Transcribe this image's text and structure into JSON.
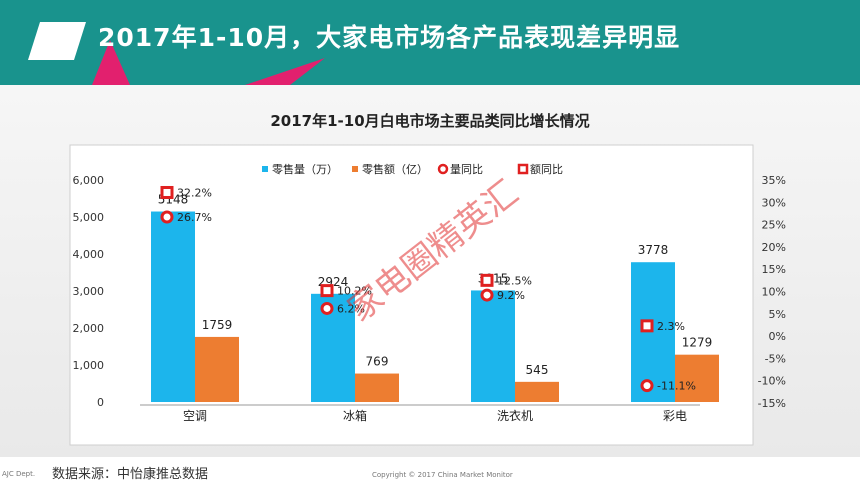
{
  "header": {
    "title": "2017年1-10月，大家电市场各产品表现差异明显"
  },
  "chart_data": {
    "type": "bar",
    "title": "2017年1-10月白电市场主要品类同比增长情况",
    "categories": [
      "空调",
      "冰箱",
      "洗衣机",
      "彩电"
    ],
    "series": [
      {
        "name": "零售量（万）",
        "kind": "bar",
        "axis": "left",
        "color": "#1cb5ec",
        "values": [
          5148,
          2924,
          3015,
          3778
        ]
      },
      {
        "name": "零售额（亿）",
        "kind": "bar",
        "axis": "left",
        "color": "#ed7d31",
        "values": [
          1759,
          769,
          545,
          1279
        ]
      },
      {
        "name": "量同比",
        "kind": "marker-circle",
        "axis": "right",
        "color": "#e02020",
        "values": [
          26.7,
          6.2,
          9.2,
          -11.1
        ],
        "labels": [
          "26.7%",
          "6.2%",
          "9.2%",
          "-11.1%"
        ]
      },
      {
        "name": "额同比",
        "kind": "marker-square",
        "axis": "right",
        "color": "#e02020",
        "values": [
          32.2,
          10.2,
          12.5,
          2.3
        ],
        "labels": [
          "32.2%",
          "10.2%",
          "12.5%",
          "2.3%"
        ]
      }
    ],
    "left_axis": {
      "ylim": [
        0,
        6000
      ],
      "ticks": [
        "0",
        "1,000",
        "2,000",
        "3,000",
        "4,000",
        "5,000",
        "6,000"
      ]
    },
    "right_axis": {
      "ylim": [
        -15,
        35
      ],
      "ticks": [
        "-15%",
        "-10%",
        "-5%",
        "0%",
        "5%",
        "10%",
        "15%",
        "20%",
        "25%",
        "30%",
        "35%"
      ]
    },
    "legend_position": "top"
  },
  "watermark": "家电圈精英汇",
  "footer": {
    "dept": "AJC Dept.",
    "source": "数据来源：中怡康推总数据",
    "copyright": "Copyright © 2017 China Market Monitor"
  }
}
